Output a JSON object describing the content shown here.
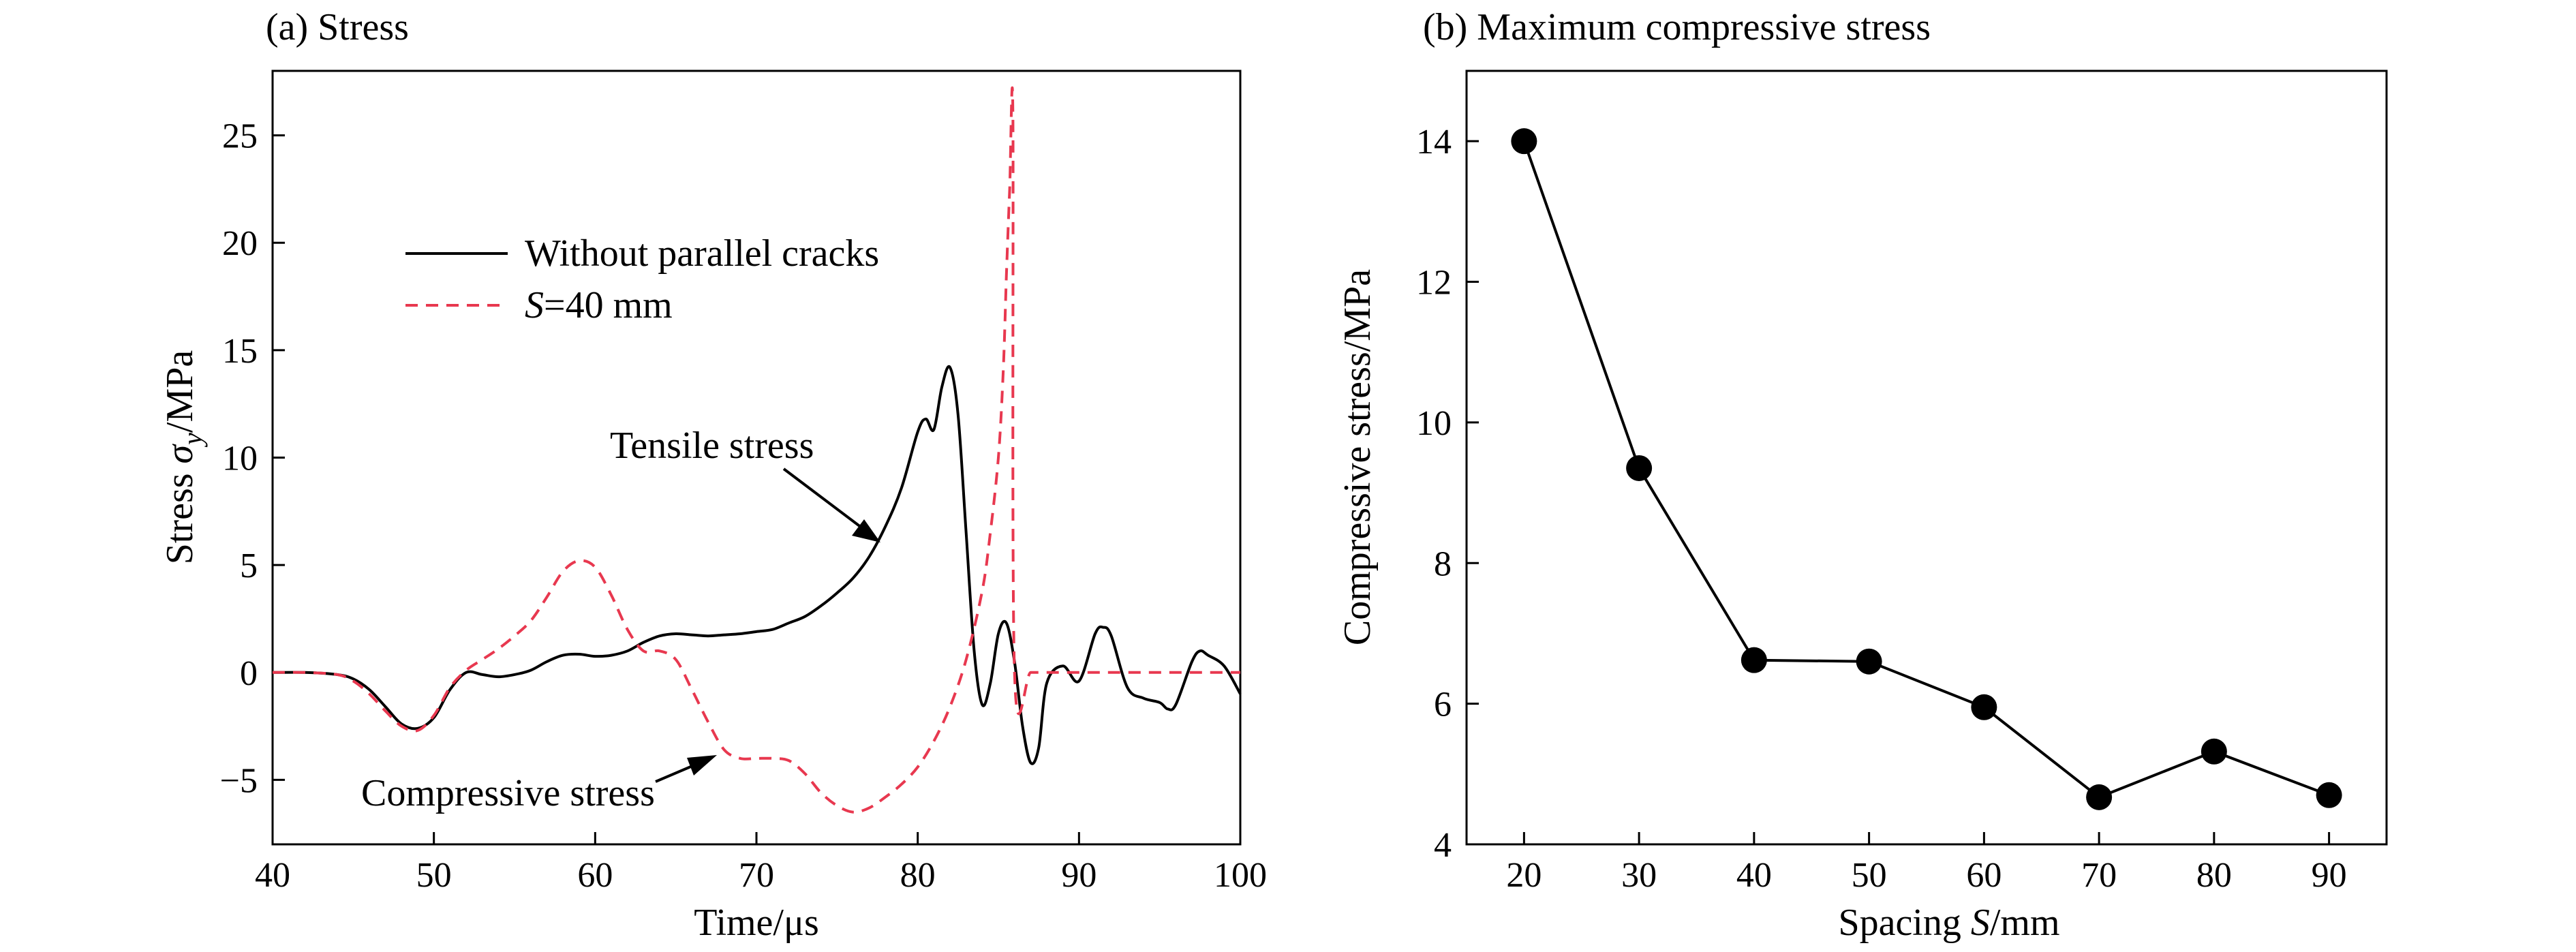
{
  "chart_data": [
    {
      "type": "line",
      "title": "(a) Stress",
      "xlabel": "Time/μs",
      "ylabel": "Stress σ_y/MPa",
      "ylabel_parts": {
        "prefix": "Stress ",
        "symbol": "σ",
        "subscript": "y",
        "suffix": "/MPa"
      },
      "xlim": [
        40,
        100
      ],
      "ylim": [
        -8,
        28
      ],
      "xticks": [
        40,
        50,
        60,
        70,
        80,
        90,
        100
      ],
      "yticks": [
        -5,
        0,
        5,
        10,
        15,
        20,
        25
      ],
      "grid": false,
      "legend_position": "upper-left",
      "annotations": [
        "Tensile stress",
        "Compressive stress"
      ],
      "series": [
        {
          "name": "Without parallel cracks",
          "legend_label": "Without parallel cracks",
          "color": "#000000",
          "style": "solid",
          "x": [
            40,
            42,
            44,
            45,
            46,
            47,
            48,
            49,
            50,
            51,
            52,
            53,
            54,
            55,
            56,
            57,
            58,
            59,
            60,
            61,
            62,
            63,
            64,
            65,
            66,
            67,
            68,
            69,
            70,
            71,
            72,
            73,
            74,
            75,
            76,
            77,
            78,
            79,
            80,
            80.5,
            81,
            81.5,
            82,
            82.5,
            83,
            83.5,
            84,
            84.5,
            85,
            85.5,
            86,
            86.5,
            87,
            87.5,
            88,
            89,
            90,
            91,
            91.5,
            92,
            93,
            94,
            95,
            95.5,
            96,
            97,
            97.5,
            98,
            99,
            100
          ],
          "y": [
            0,
            0,
            -0.1,
            -0.3,
            -0.8,
            -1.6,
            -2.4,
            -2.6,
            -2.1,
            -0.8,
            0,
            -0.1,
            -0.2,
            -0.1,
            0.1,
            0.5,
            0.8,
            0.85,
            0.75,
            0.8,
            1.0,
            1.4,
            1.7,
            1.8,
            1.75,
            1.7,
            1.75,
            1.8,
            1.9,
            2.0,
            2.3,
            2.6,
            3.1,
            3.7,
            4.4,
            5.4,
            6.8,
            8.6,
            11.2,
            11.8,
            11.3,
            13.3,
            14.2,
            12.0,
            6.5,
            1.0,
            -1.5,
            -0.5,
            1.8,
            2.3,
            0.5,
            -2.5,
            -4.2,
            -3.5,
            -0.5,
            0.3,
            -0.4,
            1.8,
            2.1,
            1.7,
            -0.7,
            -1.2,
            -1.4,
            -1.7,
            -1.5,
            0.5,
            1.0,
            0.8,
            0.3,
            -1.0
          ]
        },
        {
          "name": "S=40 mm",
          "legend_label": {
            "italic": "S",
            "rest": "=40 mm"
          },
          "color": "#e8384f",
          "style": "dashed",
          "x": [
            40,
            42,
            44,
            45,
            46,
            47,
            48,
            49,
            50,
            51,
            52,
            53,
            54,
            55,
            56,
            57,
            58,
            59,
            60,
            61,
            62,
            63,
            64,
            65,
            66,
            67,
            68,
            69,
            70,
            71,
            72,
            73,
            74,
            75,
            76,
            77,
            78,
            79,
            80,
            81,
            82,
            83,
            84,
            84.5,
            85,
            85.3,
            85.5,
            85.7,
            85.9,
            86,
            87,
            88,
            90,
            92,
            94,
            96,
            98,
            100
          ],
          "y": [
            0,
            0,
            -0.1,
            -0.4,
            -1.0,
            -1.8,
            -2.5,
            -2.7,
            -2.0,
            -0.7,
            0.1,
            0.6,
            1.1,
            1.7,
            2.4,
            3.5,
            4.7,
            5.2,
            4.9,
            3.6,
            2.0,
            1.0,
            1.0,
            0.6,
            -0.8,
            -2.3,
            -3.6,
            -4.0,
            -4.0,
            -4.0,
            -4.1,
            -4.7,
            -5.6,
            -6.2,
            -6.5,
            -6.3,
            -5.8,
            -5.2,
            -4.4,
            -3.2,
            -1.6,
            0.6,
            3.8,
            6.5,
            10.0,
            14.0,
            18.5,
            22.5,
            26.0,
            0,
            0,
            0,
            0,
            0,
            0,
            0,
            0,
            0
          ]
        }
      ]
    },
    {
      "type": "line",
      "title": "(b) Maximum compressive stress",
      "xlabel": "Spacing S/mm",
      "xlabel_parts": {
        "prefix": "Spacing ",
        "italic": "S",
        "suffix": "/mm"
      },
      "ylabel": "Compressive stress/MPa",
      "xlim": [
        15,
        95
      ],
      "ylim": [
        4,
        15
      ],
      "xticks": [
        20,
        30,
        40,
        50,
        60,
        70,
        80,
        90
      ],
      "yticks": [
        4,
        6,
        8,
        10,
        12,
        14
      ],
      "grid": false,
      "series": [
        {
          "color": "#000000",
          "marker": "circle",
          "x": [
            20,
            30,
            40,
            50,
            60,
            70,
            80,
            90
          ],
          "y": [
            14.0,
            9.35,
            6.62,
            6.6,
            5.95,
            4.67,
            5.32,
            4.7
          ]
        }
      ]
    }
  ]
}
